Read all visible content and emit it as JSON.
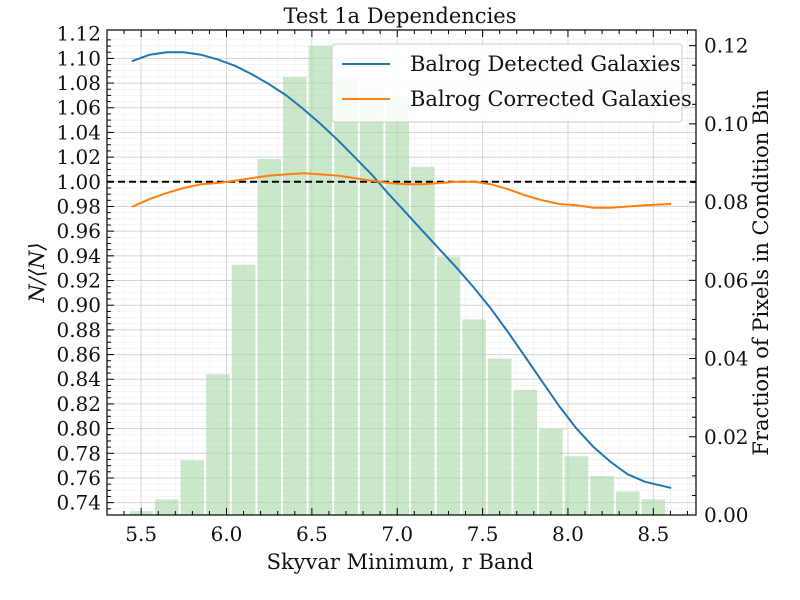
{
  "chart_data": {
    "type": "line",
    "title": "Test 1a Dependencies",
    "xlabel": "Skyvar Minimum, r Band",
    "ylabel": "N/⟨N⟩",
    "ylabel_right": "Fraction of Pixels in Condition Bin",
    "xlim": [
      5.3,
      8.75
    ],
    "ylim": [
      0.73,
      1.123
    ],
    "ylim_right": [
      0.0,
      0.124
    ],
    "x_ticks": [
      "5.5",
      "6.0",
      "6.5",
      "7.0",
      "7.5",
      "8.0",
      "8.5"
    ],
    "x_tick_values": [
      5.5,
      6.0,
      6.5,
      7.0,
      7.5,
      8.0,
      8.5
    ],
    "y_ticks": [
      "0.74",
      "0.76",
      "0.78",
      "0.80",
      "0.82",
      "0.84",
      "0.86",
      "0.88",
      "0.90",
      "0.92",
      "0.94",
      "0.96",
      "0.98",
      "1.00",
      "1.02",
      "1.04",
      "1.06",
      "1.08",
      "1.10",
      "1.12"
    ],
    "y_tick_values": [
      0.74,
      0.76,
      0.78,
      0.8,
      0.82,
      0.84,
      0.86,
      0.88,
      0.9,
      0.92,
      0.94,
      0.96,
      0.98,
      1.0,
      1.02,
      1.04,
      1.06,
      1.08,
      1.1,
      1.12
    ],
    "y_right_ticks": [
      "0.00",
      "0.02",
      "0.04",
      "0.06",
      "0.08",
      "0.10",
      "0.12"
    ],
    "y_right_tick_values": [
      0.0,
      0.02,
      0.04,
      0.06,
      0.08,
      0.1,
      0.12
    ],
    "reference_line": {
      "y": 1.0,
      "color": "#000000",
      "style": "dashed"
    },
    "series": [
      {
        "name": "Balrog Detected Galaxies",
        "color": "#1f77b4",
        "points": [
          [
            5.45,
            1.098
          ],
          [
            5.55,
            1.103
          ],
          [
            5.65,
            1.105
          ],
          [
            5.75,
            1.105
          ],
          [
            5.85,
            1.103
          ],
          [
            5.95,
            1.099
          ],
          [
            6.05,
            1.094
          ],
          [
            6.15,
            1.087
          ],
          [
            6.25,
            1.079
          ],
          [
            6.35,
            1.07
          ],
          [
            6.45,
            1.059
          ],
          [
            6.55,
            1.047
          ],
          [
            6.65,
            1.034
          ],
          [
            6.75,
            1.02
          ],
          [
            6.85,
            1.006
          ],
          [
            6.95,
            0.99
          ],
          [
            7.05,
            0.975
          ],
          [
            7.15,
            0.96
          ],
          [
            7.25,
            0.945
          ],
          [
            7.35,
            0.93
          ],
          [
            7.45,
            0.914
          ],
          [
            7.55,
            0.897
          ],
          [
            7.65,
            0.878
          ],
          [
            7.75,
            0.858
          ],
          [
            7.85,
            0.838
          ],
          [
            7.95,
            0.818
          ],
          [
            8.05,
            0.8
          ],
          [
            8.15,
            0.785
          ],
          [
            8.25,
            0.773
          ],
          [
            8.35,
            0.763
          ],
          [
            8.45,
            0.757
          ],
          [
            8.6,
            0.752
          ]
        ]
      },
      {
        "name": "Balrog Corrected Galaxies",
        "color": "#ff7f0e",
        "points": [
          [
            5.45,
            0.98
          ],
          [
            5.55,
            0.986
          ],
          [
            5.65,
            0.991
          ],
          [
            5.75,
            0.995
          ],
          [
            5.85,
            0.998
          ],
          [
            5.95,
            0.999
          ],
          [
            6.05,
            1.001
          ],
          [
            6.15,
            1.003
          ],
          [
            6.25,
            1.005
          ],
          [
            6.35,
            1.006
          ],
          [
            6.45,
            1.007
          ],
          [
            6.55,
            1.006
          ],
          [
            6.65,
            1.005
          ],
          [
            6.75,
            1.003
          ],
          [
            6.85,
            1.001
          ],
          [
            6.95,
            0.999
          ],
          [
            7.05,
            0.998
          ],
          [
            7.15,
            0.998
          ],
          [
            7.25,
            0.999
          ],
          [
            7.35,
            1.0
          ],
          [
            7.45,
            1.0
          ],
          [
            7.55,
            0.998
          ],
          [
            7.65,
            0.994
          ],
          [
            7.75,
            0.989
          ],
          [
            7.85,
            0.985
          ],
          [
            7.95,
            0.982
          ],
          [
            8.05,
            0.981
          ],
          [
            8.15,
            0.979
          ],
          [
            8.25,
            0.979
          ],
          [
            8.35,
            0.98
          ],
          [
            8.45,
            0.981
          ],
          [
            8.6,
            0.982
          ]
        ]
      }
    ],
    "histogram": {
      "name": "Fraction of pixels per condition bin",
      "axis": "right",
      "color": "#a8d8a8",
      "bin_width": 0.15,
      "bin_centers": [
        5.5,
        5.65,
        5.8,
        5.95,
        6.1,
        6.25,
        6.4,
        6.55,
        6.7,
        6.85,
        7.0,
        7.15,
        7.3,
        7.45,
        7.6,
        7.75,
        7.9,
        8.05,
        8.2,
        8.35,
        8.5
      ],
      "values": [
        0.001,
        0.004,
        0.014,
        0.036,
        0.064,
        0.091,
        0.112,
        0.12,
        0.112,
        0.109,
        0.107,
        0.089,
        0.066,
        0.05,
        0.04,
        0.032,
        0.022,
        0.015,
        0.01,
        0.006,
        0.004
      ]
    },
    "legend_position": "top-right",
    "grid": true
  }
}
